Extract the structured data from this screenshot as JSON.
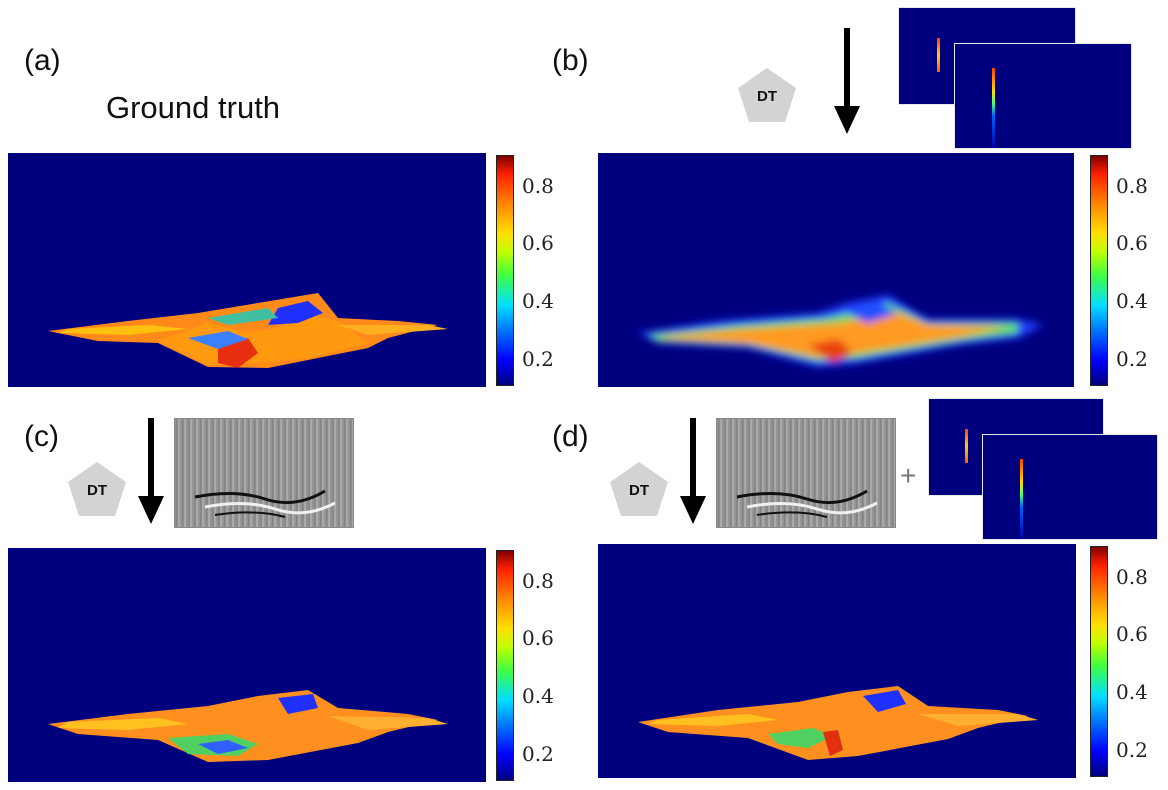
{
  "panels": {
    "a": {
      "label": "(a)",
      "title": "Ground truth"
    },
    "b": {
      "label": "(b)"
    },
    "c": {
      "label": "(c)"
    },
    "d": {
      "label": "(d)"
    }
  },
  "dt_label": "DT",
  "plus_sign": "+",
  "colorbar": {
    "ticks": [
      "0.8",
      "0.6",
      "0.4",
      "0.2"
    ],
    "colormap": "jet",
    "range": [
      0.1,
      0.9
    ]
  },
  "colors": {
    "background": "#00007f",
    "pentagon": "#d3d3d3",
    "arrow": "#000000"
  }
}
